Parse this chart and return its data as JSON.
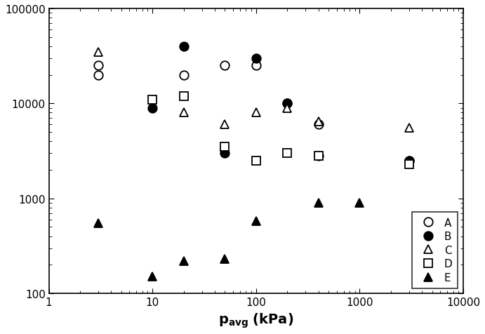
{
  "series": {
    "A": {
      "x": [
        3,
        3,
        20,
        50,
        100,
        200,
        400,
        3000
      ],
      "y": [
        20000,
        25000,
        20000,
        25000,
        25000,
        10000,
        6000,
        2500
      ],
      "marker": "o",
      "filled": false,
      "color": "black",
      "label": "A"
    },
    "B": {
      "x": [
        10,
        20,
        50,
        100,
        200,
        400,
        3000
      ],
      "y": [
        9000,
        40000,
        3000,
        30000,
        10000,
        2800,
        2500
      ],
      "marker": "o",
      "filled": true,
      "color": "black",
      "label": "B"
    },
    "C": {
      "x": [
        3,
        20,
        50,
        100,
        200,
        400,
        3000
      ],
      "y": [
        35000,
        8000,
        6000,
        8000,
        9000,
        6500,
        5500
      ],
      "marker": "^",
      "filled": false,
      "color": "black",
      "label": "C"
    },
    "D": {
      "x": [
        10,
        20,
        50,
        100,
        200,
        400,
        3000
      ],
      "y": [
        11000,
        12000,
        3500,
        2500,
        3000,
        2800,
        2300
      ],
      "marker": "s",
      "filled": false,
      "color": "black",
      "label": "D"
    },
    "E": {
      "x": [
        3,
        10,
        20,
        50,
        100,
        400,
        1000
      ],
      "y": [
        550,
        150,
        220,
        230,
        580,
        900,
        900
      ],
      "marker": "^",
      "filled": true,
      "color": "black",
      "label": "E"
    }
  },
  "xlim": [
    1,
    10000
  ],
  "ylim": [
    100,
    100000
  ],
  "tick_fontsize": 11,
  "legend_loc": "lower right",
  "marker_size": 9,
  "background_color": "#ffffff"
}
